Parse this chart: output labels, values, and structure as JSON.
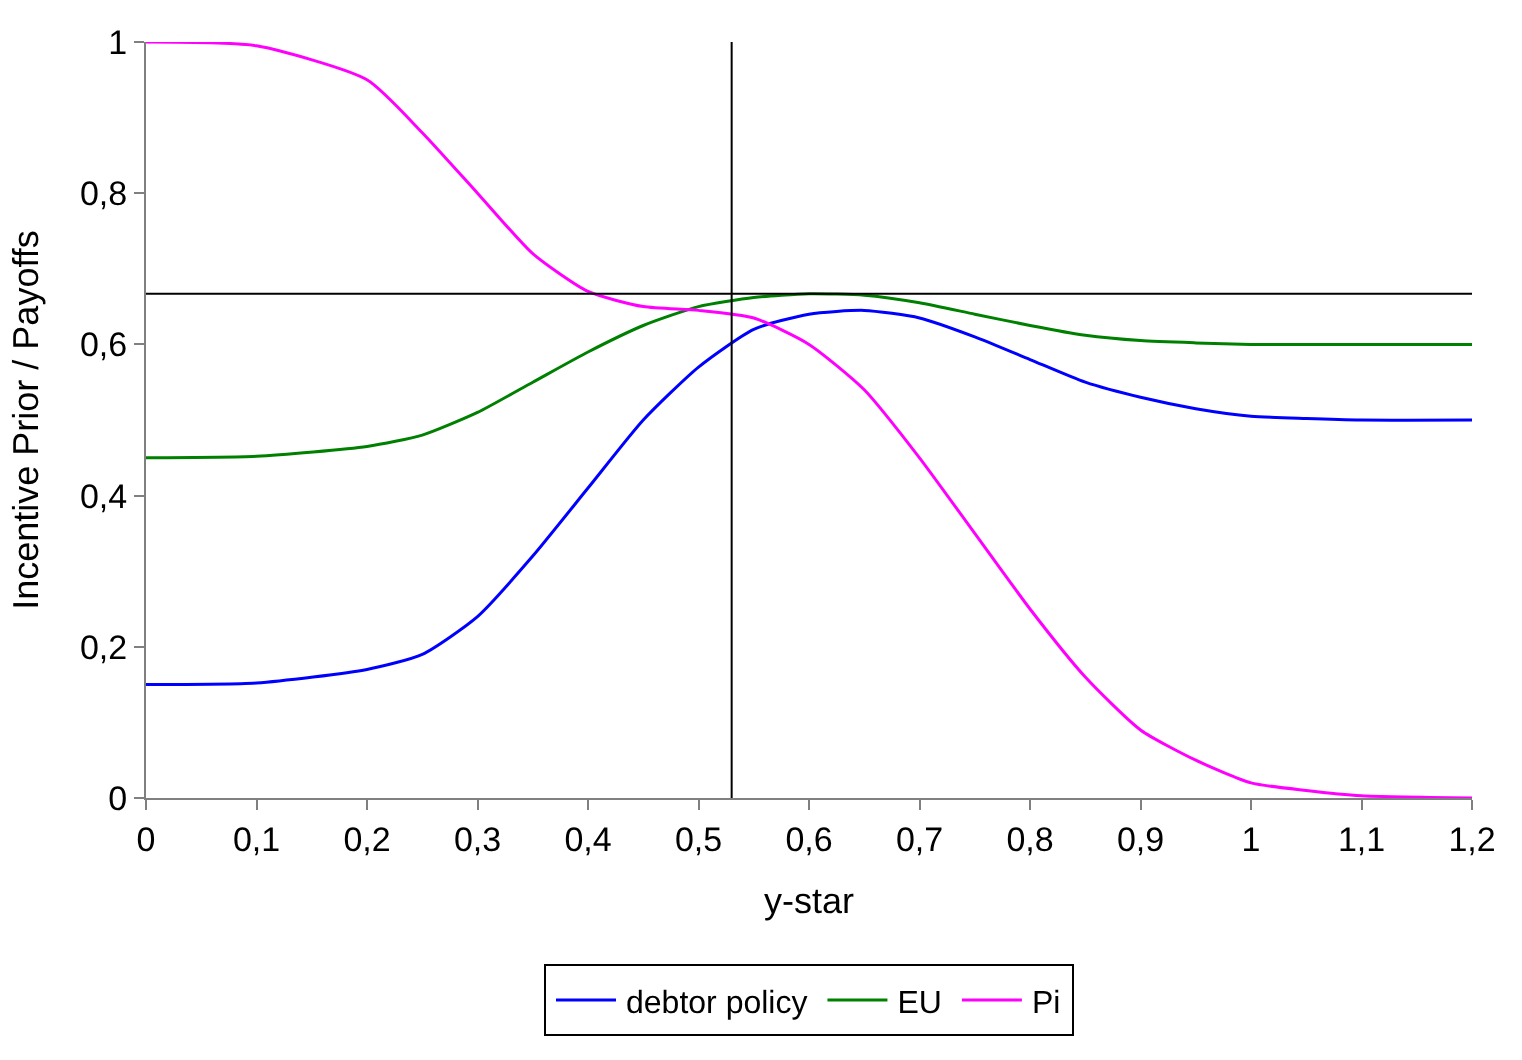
{
  "chart_data": {
    "type": "line",
    "xlabel": "y-star",
    "ylabel": "Incentive Prior / Payoffs",
    "x": [
      0,
      0.1,
      0.2,
      0.25,
      0.3,
      0.35,
      0.4,
      0.45,
      0.5,
      0.55,
      0.6,
      0.65,
      0.7,
      0.75,
      0.8,
      0.85,
      0.9,
      0.95,
      1.0,
      1.05,
      1.1,
      1.2
    ],
    "series": [
      {
        "name": "debtor policy",
        "color": "#0000ff",
        "values": [
          0.15,
          0.152,
          0.17,
          0.19,
          0.24,
          0.32,
          0.41,
          0.5,
          0.57,
          0.62,
          0.64,
          0.645,
          0.635,
          0.61,
          0.58,
          0.55,
          0.53,
          0.515,
          0.505,
          0.502,
          0.5,
          0.5
        ]
      },
      {
        "name": "EU",
        "color": "#008000",
        "values": [
          0.45,
          0.452,
          0.465,
          0.48,
          0.51,
          0.55,
          0.59,
          0.625,
          0.65,
          0.662,
          0.667,
          0.665,
          0.655,
          0.64,
          0.625,
          0.612,
          0.605,
          0.602,
          0.6,
          0.6,
          0.6,
          0.6
        ]
      },
      {
        "name": "Pi",
        "color": "#ff00ff",
        "values": [
          1,
          0.995,
          0.95,
          0.88,
          0.8,
          0.72,
          0.67,
          0.65,
          0.645,
          0.635,
          0.6,
          0.54,
          0.45,
          0.35,
          0.25,
          0.16,
          0.09,
          0.05,
          0.02,
          0.01,
          0.003,
          0
        ]
      }
    ],
    "xlim": [
      0,
      1.2
    ],
    "xticks": [
      0,
      {
        "value": 0.1,
        "label": "0,1"
      },
      {
        "value": 0.2,
        "label": "0,2"
      },
      {
        "value": 0.3,
        "label": "0,3"
      },
      {
        "value": 0.4,
        "label": "0,4"
      },
      {
        "value": 0.5,
        "label": "0,5"
      },
      {
        "value": 0.6,
        "label": "0,6"
      },
      {
        "value": 0.7,
        "label": "0,7"
      },
      {
        "value": 0.8,
        "label": "0,8"
      },
      {
        "value": 0.9,
        "label": "0,9"
      },
      1,
      {
        "value": 1.1,
        "label": "1,1"
      },
      {
        "value": 1.2,
        "label": "1,2"
      }
    ],
    "ylim": [
      0,
      1
    ],
    "yticks": [
      0,
      {
        "value": 0.2,
        "label": "0,2"
      },
      {
        "value": 0.4,
        "label": "0,4"
      },
      {
        "value": 0.6,
        "label": "0,6"
      },
      {
        "value": 0.8,
        "label": "0,8"
      },
      1
    ],
    "ref_lines": [
      {
        "axis": "x",
        "value": 0.53,
        "color": "#000000"
      },
      {
        "axis": "y",
        "value": 0.667,
        "color": "#000000"
      }
    ],
    "legend": "bottom",
    "marker": "none",
    "line_style": "solid"
  }
}
